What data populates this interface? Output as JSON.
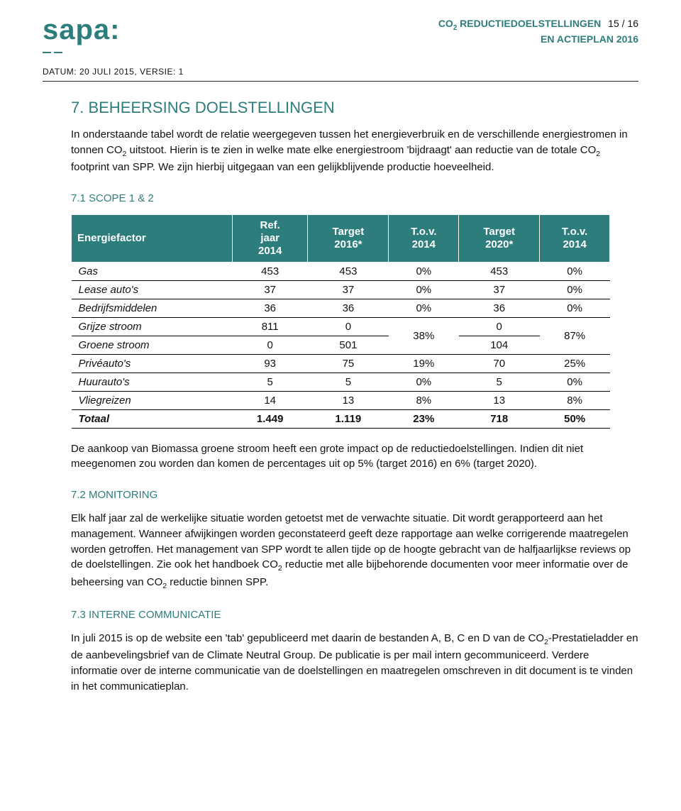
{
  "header": {
    "brand": "sapa",
    "colon": ":",
    "doc_title_line1_pre": "CO",
    "doc_title_line1_sub": "2",
    "doc_title_line1_post": " REDUCTIEDOELSTELLINGEN",
    "doc_title_line2": "EN ACTIEPLAN 2016",
    "page_num": "15 / 16",
    "datum": "DATUM: 20 JULI 2015, VERSIE: 1"
  },
  "s7": {
    "title": "7. BEHEERSING DOELSTELLINGEN",
    "intro_pre": "In onderstaande tabel wordt de relatie weergegeven tussen het energieverbruik en de verschillende energiestromen in tonnen CO",
    "intro_sub": "2",
    "intro_post": " uitstoot. Hierin is te zien in welke mate elke energiestroom 'bijdraagt' aan reductie van de totale CO",
    "intro_sub2": "2",
    "intro_post2": " footprint van SPP. We zijn hierbij uitgegaan van een gelijkblijvende productie hoeveelheid."
  },
  "s71": {
    "title": "7.1 SCOPE 1 & 2",
    "table": {
      "columns": [
        "Energiefactor",
        "Ref.\njaar\n2014",
        "Target\n2016*",
        "T.o.v.\n2014",
        "Target\n2020*",
        "T.o.v.\n2014"
      ],
      "rows": [
        {
          "label": "Gas",
          "ref": "453",
          "t16": "453",
          "tov14a": "0%",
          "t20": "453",
          "tov14b": "0%"
        },
        {
          "label": "Lease auto's",
          "ref": "37",
          "t16": "37",
          "tov14a": "0%",
          "t20": "37",
          "tov14b": "0%"
        },
        {
          "label": "Bedrijfsmiddelen",
          "ref": "36",
          "t16": "36",
          "tov14a": "0%",
          "t20": "36",
          "tov14b": "0%"
        },
        {
          "label": "Grijze stroom",
          "ref": "811",
          "t16": "0",
          "tov14a": "38%",
          "t20": "0",
          "tov14b": "87%",
          "merge_down_tov": true
        },
        {
          "label": "Groene stroom",
          "ref": "0",
          "t16": "501",
          "t20": "104",
          "merged": true
        },
        {
          "label": "Privéauto's",
          "ref": "93",
          "t16": "75",
          "tov14a": "19%",
          "t20": "70",
          "tov14b": "25%"
        },
        {
          "label": "Huurauto's",
          "ref": "5",
          "t16": "5",
          "tov14a": "0%",
          "t20": "5",
          "tov14b": "0%"
        },
        {
          "label": "Vliegreizen",
          "ref": "14",
          "t16": "13",
          "tov14a": "8%",
          "t20": "13",
          "tov14b": "8%"
        }
      ],
      "total": {
        "label": "Totaal",
        "ref": "1.449",
        "t16": "1.119",
        "tov14a": "23%",
        "t20": "718",
        "tov14b": "50%"
      }
    },
    "footnote": "De aankoop van Biomassa groene stroom heeft een grote impact op de reductiedoelstellingen. Indien dit niet meegenomen zou worden dan komen de percentages uit op 5% (target 2016) en 6% (target 2020)."
  },
  "s72": {
    "title": "7.2 MONITORING",
    "text_pre": "Elk half jaar zal de werkelijke situatie worden getoetst met de verwachte situatie. Dit wordt gerapporteerd aan het management. Wanneer afwijkingen worden geconstateerd geeft deze rapportage aan welke corrigerende maatregelen worden getroffen. Het management van SPP wordt te allen tijde op de hoogte gebracht van de halfjaarlijkse reviews op de doelstellingen. Zie ook het handboek CO",
    "text_sub": "2",
    "text_mid": " reductie met alle bijbehorende documenten voor meer informatie over de beheersing van CO",
    "text_sub2": "2",
    "text_post": " reductie binnen SPP."
  },
  "s73": {
    "title": "7.3 INTERNE COMMUNICATIE",
    "text_pre": "In juli 2015 is op de website een 'tab' gepubliceerd met daarin de bestanden A, B, C en D van de CO",
    "text_sub": "2",
    "text_post": "-Prestatieladder en de aanbevelingsbrief van de Climate Neutral Group. De publicatie is per mail intern gecommuniceerd. Verdere informatie over de interne communicatie van de doelstellingen en maatregelen omschreven in dit document is te vinden in het communicatieplan."
  },
  "style": {
    "accent_color": "#2d7d7c",
    "text_color": "#111111",
    "page_bg": "#ffffff",
    "table_header_text": "#ffffff",
    "table_border": "#000000",
    "body_font_size_pt": 11,
    "header_font_size_pt": 10,
    "title_font_size_pt": 16,
    "column_widths_pct": [
      28,
      14,
      14,
      14,
      14,
      14
    ]
  }
}
